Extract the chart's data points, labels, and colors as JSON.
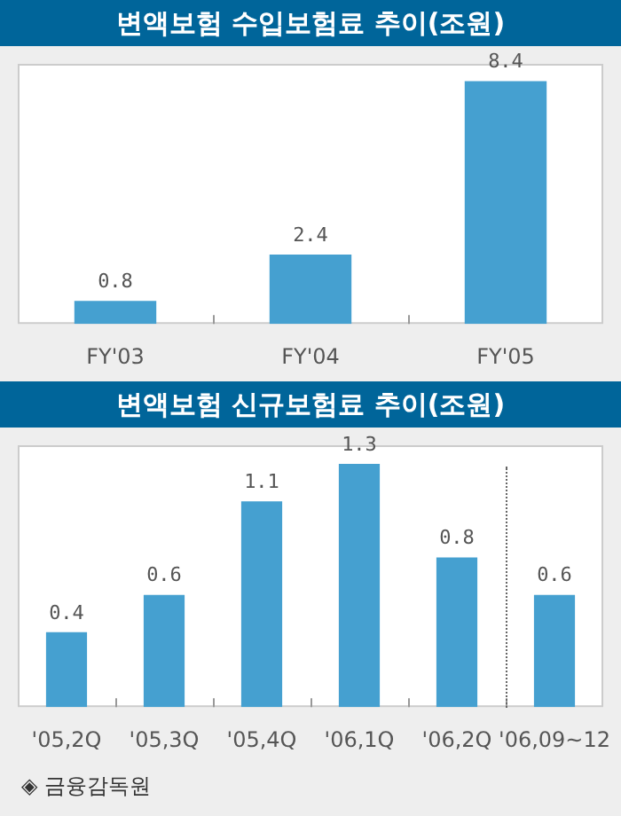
{
  "chart_data": [
    {
      "type": "bar",
      "title": "변액보험 수입보험료 추이(조원)",
      "categories": [
        "FY'03",
        "FY'04",
        "FY'05"
      ],
      "values": [
        0.8,
        2.4,
        8.4
      ],
      "color": "#45a0d0",
      "data_labels": true
    },
    {
      "type": "bar",
      "title": "변액보험 신규보험료 추이(조원)",
      "categories": [
        "'05,2Q",
        "'05,3Q",
        "'05,4Q",
        "'06,1Q",
        "'06,2Q",
        "'06,09~12"
      ],
      "values": [
        0.4,
        0.6,
        1.1,
        1.3,
        0.8,
        0.6
      ],
      "color": "#45a0d0",
      "data_labels": true,
      "annotations": [
        "◈ 금융감독원"
      ]
    }
  ]
}
